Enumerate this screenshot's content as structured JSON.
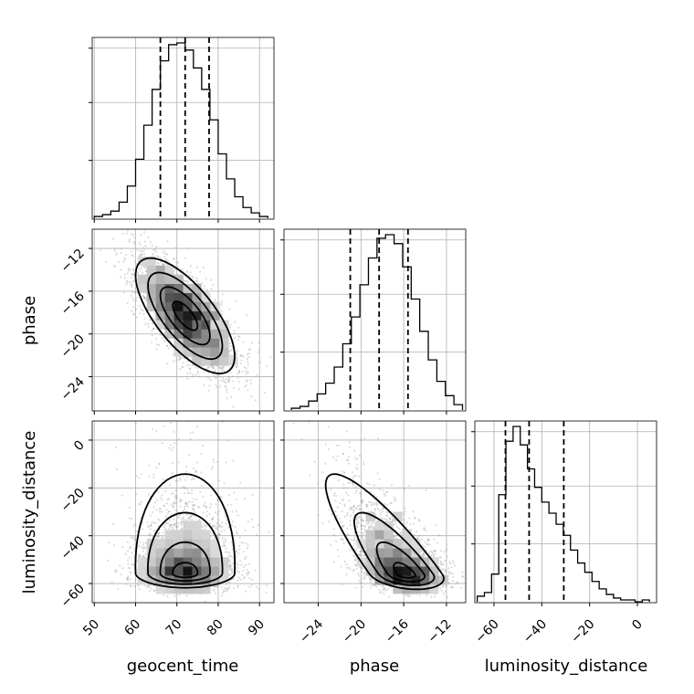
{
  "chart_data": {
    "type": "corner",
    "parameters": [
      "geocent_time",
      "phase",
      "luminosity_distance"
    ],
    "axes": {
      "geocent_time": {
        "label": "geocent_time",
        "range": [
          49.5,
          93.5
        ],
        "ticks": [
          50,
          60,
          70,
          80,
          90
        ],
        "tick_labels": [
          "50",
          "60",
          "70",
          "80",
          "90"
        ]
      },
      "phase": {
        "label": "phase",
        "range": [
          -27.2,
          -10.2
        ],
        "ticks": [
          -24,
          -20,
          -16,
          -12
        ],
        "tick_labels": [
          "−24",
          "−20",
          "−16",
          "−12"
        ]
      },
      "luminosity_distance": {
        "label": "luminosity_distance",
        "range": [
          -68,
          8
        ],
        "ticks": [
          -60,
          -40,
          -20,
          0
        ],
        "tick_labels": [
          "−60",
          "−40",
          "−20",
          "0"
        ]
      }
    },
    "grid": true,
    "marginals": {
      "geocent_time": {
        "bin_edges": [
          50,
          52,
          54,
          56,
          58,
          60,
          62,
          64,
          66,
          68,
          70,
          72,
          74,
          76,
          78,
          80,
          82,
          84,
          86,
          88,
          90,
          92
        ],
        "counts": [
          1,
          2,
          4,
          9,
          18,
          33,
          52,
          72,
          88,
          97,
          98,
          94,
          84,
          72,
          55,
          36,
          22,
          12,
          6,
          3,
          1
        ],
        "quantiles": [
          66,
          72,
          77.8
        ]
      },
      "phase": {
        "bin_edges": [
          -26.5,
          -25.7,
          -24.9,
          -24.1,
          -23.3,
          -22.5,
          -21.7,
          -20.9,
          -20.1,
          -19.3,
          -18.5,
          -17.7,
          -16.9,
          -16.1,
          -15.3,
          -14.5,
          -13.7,
          -12.9,
          -12.1,
          -11.3,
          -10.5
        ],
        "counts": [
          1,
          2,
          5,
          9,
          15,
          24,
          37,
          52,
          70,
          85,
          96,
          98,
          93,
          80,
          62,
          44,
          28,
          16,
          8,
          3
        ],
        "quantiles": [
          -21,
          -18.3,
          -15.6
        ]
      },
      "luminosity_distance": {
        "bin_edges": [
          -67,
          -64,
          -61,
          -58,
          -55,
          -52,
          -49,
          -46,
          -43,
          -40,
          -37,
          -34,
          -31,
          -28,
          -25,
          -22,
          -19,
          -16,
          -13,
          -10,
          -7,
          -4,
          -1,
          2,
          5
        ],
        "counts": [
          3,
          5,
          15,
          58,
          87,
          95,
          85,
          72,
          62,
          54,
          48,
          42,
          36,
          28,
          21,
          16,
          11,
          7,
          4,
          2,
          1,
          1,
          0,
          1
        ],
        "quantiles": [
          -55.2,
          -45.3,
          -30.8
        ]
      }
    },
    "joint": {
      "geocent_time_vs_phase": {
        "center": [
          72,
          -18.3
        ],
        "sigma": [
          6,
          2.7
        ],
        "correlation": -0.7
      },
      "geocent_time_vs_luminosity_distance": {
        "center": [
          72,
          -47
        ],
        "sigma": [
          6,
          12
        ],
        "correlation": 0.05,
        "skew": "heavy upper tail in luminosity_distance, mode near -57"
      },
      "phase_vs_luminosity_distance": {
        "center": [
          -18.3,
          -47
        ],
        "sigma": [
          2.7,
          12
        ],
        "correlation": -0.6,
        "skew": "mode near phase -16, luminosity_distance -57"
      }
    }
  }
}
